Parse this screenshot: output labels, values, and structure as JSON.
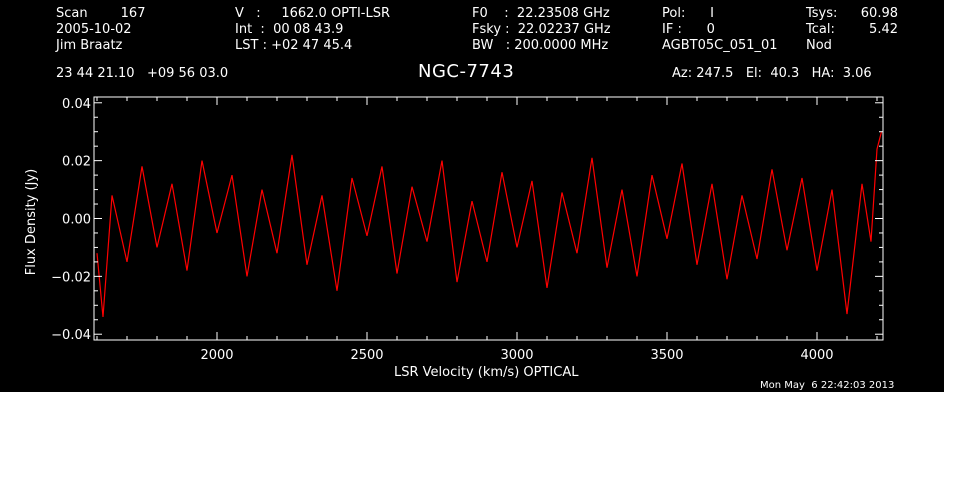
{
  "header": {
    "col1": [
      "Scan        167",
      "2005-10-02",
      "Jim Braatz"
    ],
    "col2": [
      "V   :     1662.0 OPTI-LSR",
      "Int  :  00 08 43.9",
      "LST : +02 47 45.4"
    ],
    "col3": [
      "F0    :  22.23508 GHz",
      "Fsky :  22.02237 GHz",
      "BW   : 200.0000 MHz"
    ],
    "col4": [
      "Pol:      I",
      "IF :      0",
      "AGBT05C_051_01"
    ],
    "col5_labels": [
      "Tsys:",
      "Tcal:",
      "Nod"
    ],
    "col5_values": [
      "60.98",
      "5.42",
      ""
    ],
    "coords": "23 44 21.10   +09 56 03.0",
    "source": "NGC-7743",
    "az_el_ha": "Az: 247.5   El:  40.3   HA:  3.06",
    "timestamp": "Mon May  6 22:42:03 2013"
  },
  "chart_data": {
    "type": "line",
    "title": "NGC-7743",
    "xlabel": "LSR Velocity (km/s) OPTICAL",
    "ylabel": "Flux Density (Jy)",
    "xlim": [
      1590,
      4220
    ],
    "ylim": [
      -0.042,
      0.042
    ],
    "xticks": [
      2000,
      2500,
      3000,
      3500,
      4000
    ],
    "xtick_labels": [
      "2000",
      "2500",
      "3000",
      "3500",
      "4000"
    ],
    "yticks": [
      0.04,
      0.02,
      0.0,
      -0.02,
      -0.04
    ],
    "ytick_labels": [
      "0.04",
      "0.02",
      "0.00",
      "−0.02",
      "−0.04"
    ],
    "grid": false,
    "series": [
      {
        "color": "#ff0000",
        "x": [
          1600,
          1620,
          1650,
          1700,
          1750,
          1800,
          1850,
          1900,
          1950,
          2000,
          2050,
          2100,
          2150,
          2200,
          2250,
          2300,
          2350,
          2400,
          2450,
          2500,
          2550,
          2600,
          2650,
          2700,
          2750,
          2800,
          2850,
          2900,
          2950,
          3000,
          3050,
          3100,
          3150,
          3200,
          3250,
          3300,
          3350,
          3400,
          3450,
          3500,
          3550,
          3600,
          3650,
          3700,
          3750,
          3800,
          3850,
          3900,
          3950,
          4000,
          4050,
          4100,
          4150,
          4180,
          4200,
          4215
        ],
        "y": [
          -0.012,
          -0.034,
          0.008,
          -0.015,
          0.018,
          -0.01,
          0.012,
          -0.018,
          0.02,
          -0.005,
          0.015,
          -0.02,
          0.01,
          -0.012,
          0.022,
          -0.016,
          0.008,
          -0.025,
          0.014,
          -0.006,
          0.018,
          -0.019,
          0.011,
          -0.008,
          0.02,
          -0.022,
          0.006,
          -0.015,
          0.016,
          -0.01,
          0.013,
          -0.024,
          0.009,
          -0.012,
          0.021,
          -0.017,
          0.01,
          -0.02,
          0.015,
          -0.007,
          0.019,
          -0.016,
          0.012,
          -0.021,
          0.008,
          -0.014,
          0.017,
          -0.011,
          0.014,
          -0.018,
          0.01,
          -0.033,
          0.012,
          -0.008,
          0.024,
          0.03
        ]
      }
    ]
  }
}
